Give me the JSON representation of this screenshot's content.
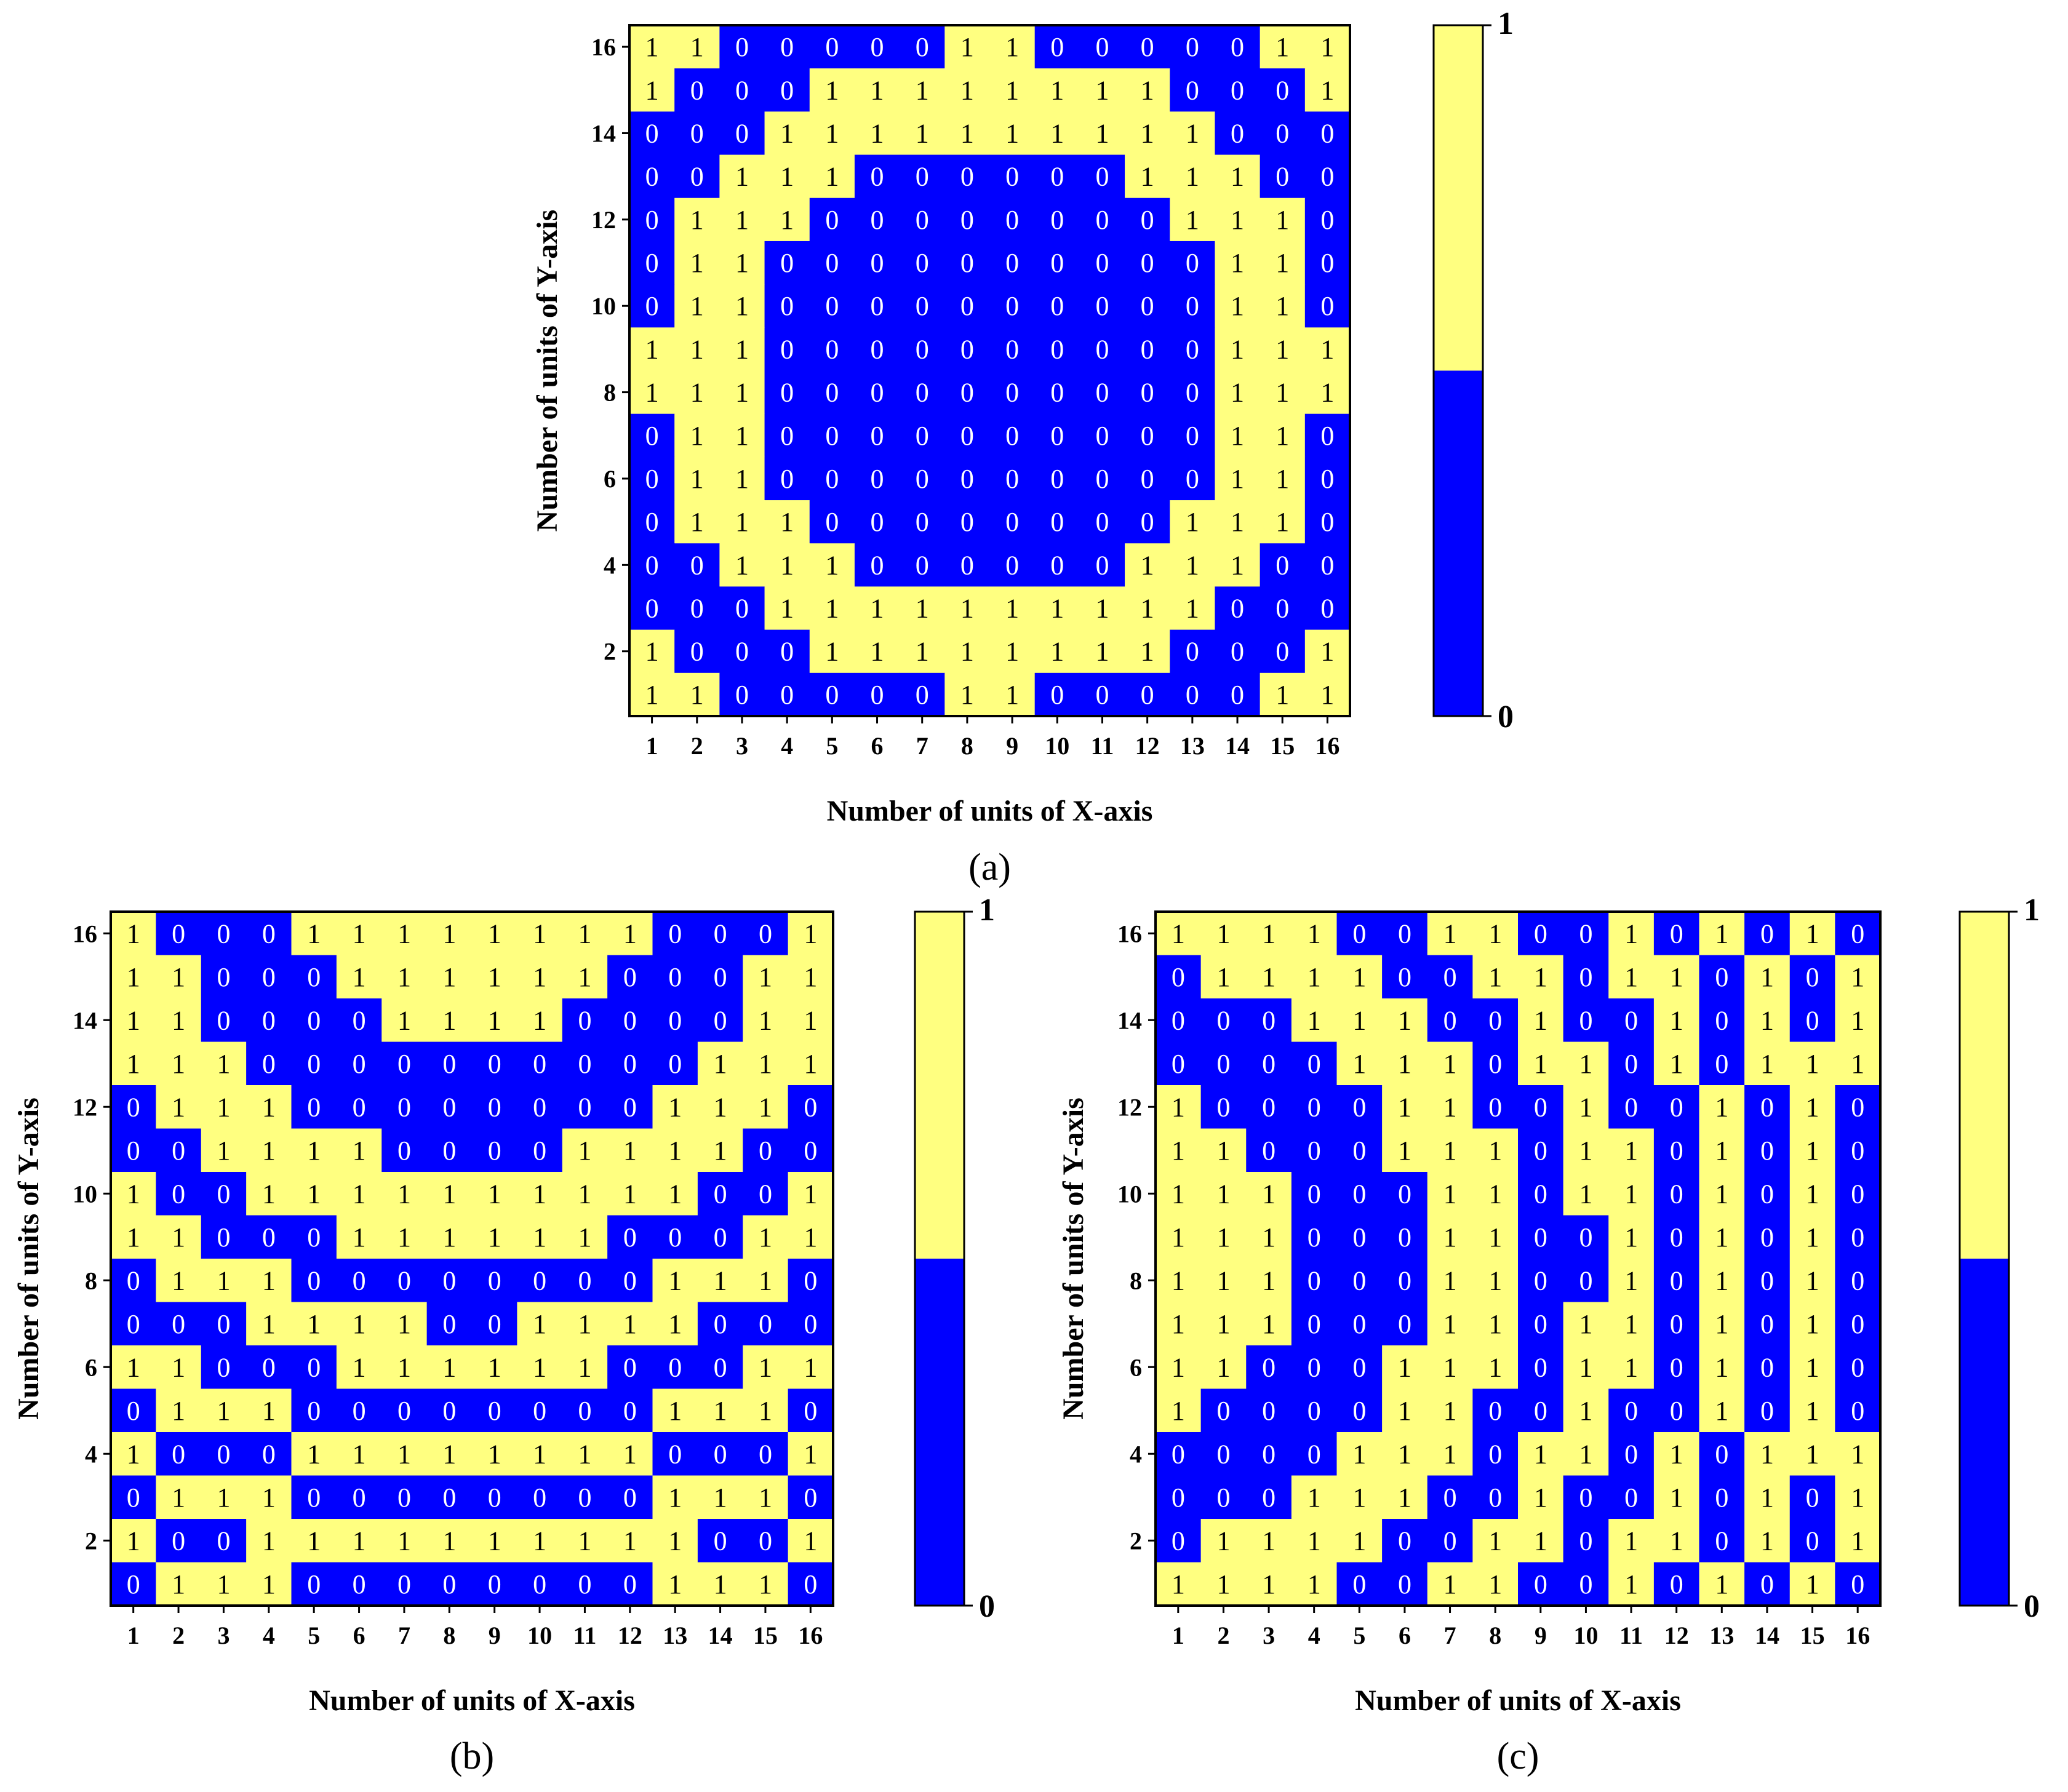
{
  "colors": {
    "zero": "#0000ff",
    "one": "#ffff80",
    "zero_text": "#ffffff",
    "one_text": "#000000",
    "frame": "#000000"
  },
  "chart_data": [
    {
      "type": "heatmap",
      "panel_label": "(a)",
      "xlabel": "Number of units of X-axis",
      "ylabel": "Number of units of Y-axis",
      "x_ticks": [
        "1",
        "2",
        "3",
        "4",
        "5",
        "6",
        "7",
        "8",
        "9",
        "10",
        "11",
        "12",
        "13",
        "14",
        "15",
        "16"
      ],
      "y_ticks": [
        "2",
        "4",
        "6",
        "8",
        "10",
        "12",
        "14",
        "16"
      ],
      "colorbar": {
        "min_label": "0",
        "max_label": "1"
      },
      "rows_top_to_bottom": [
        [
          1,
          1,
          0,
          0,
          0,
          0,
          0,
          1,
          1,
          0,
          0,
          0,
          0,
          0,
          1,
          1
        ],
        [
          1,
          0,
          0,
          0,
          1,
          1,
          1,
          1,
          1,
          1,
          1,
          1,
          0,
          0,
          0,
          1
        ],
        [
          0,
          0,
          0,
          1,
          1,
          1,
          1,
          1,
          1,
          1,
          1,
          1,
          1,
          0,
          0,
          0
        ],
        [
          0,
          0,
          1,
          1,
          1,
          0,
          0,
          0,
          0,
          0,
          0,
          1,
          1,
          1,
          0,
          0
        ],
        [
          0,
          1,
          1,
          1,
          0,
          0,
          0,
          0,
          0,
          0,
          0,
          0,
          1,
          1,
          1,
          0
        ],
        [
          0,
          1,
          1,
          0,
          0,
          0,
          0,
          0,
          0,
          0,
          0,
          0,
          0,
          1,
          1,
          0
        ],
        [
          0,
          1,
          1,
          0,
          0,
          0,
          0,
          0,
          0,
          0,
          0,
          0,
          0,
          1,
          1,
          0
        ],
        [
          1,
          1,
          1,
          0,
          0,
          0,
          0,
          0,
          0,
          0,
          0,
          0,
          0,
          1,
          1,
          1
        ],
        [
          1,
          1,
          1,
          0,
          0,
          0,
          0,
          0,
          0,
          0,
          0,
          0,
          0,
          1,
          1,
          1
        ],
        [
          0,
          1,
          1,
          0,
          0,
          0,
          0,
          0,
          0,
          0,
          0,
          0,
          0,
          1,
          1,
          0
        ],
        [
          0,
          1,
          1,
          0,
          0,
          0,
          0,
          0,
          0,
          0,
          0,
          0,
          0,
          1,
          1,
          0
        ],
        [
          0,
          1,
          1,
          1,
          0,
          0,
          0,
          0,
          0,
          0,
          0,
          0,
          1,
          1,
          1,
          0
        ],
        [
          0,
          0,
          1,
          1,
          1,
          0,
          0,
          0,
          0,
          0,
          0,
          1,
          1,
          1,
          0,
          0
        ],
        [
          0,
          0,
          0,
          1,
          1,
          1,
          1,
          1,
          1,
          1,
          1,
          1,
          1,
          0,
          0,
          0
        ],
        [
          1,
          0,
          0,
          0,
          1,
          1,
          1,
          1,
          1,
          1,
          1,
          1,
          0,
          0,
          0,
          1
        ],
        [
          1,
          1,
          0,
          0,
          0,
          0,
          0,
          1,
          1,
          0,
          0,
          0,
          0,
          0,
          1,
          1
        ]
      ]
    },
    {
      "type": "heatmap",
      "panel_label": "(b)",
      "xlabel": "Number of units of X-axis",
      "ylabel": "Number of units of Y-axis",
      "x_ticks": [
        "1",
        "2",
        "3",
        "4",
        "5",
        "6",
        "7",
        "8",
        "9",
        "10",
        "11",
        "12",
        "13",
        "14",
        "15",
        "16"
      ],
      "y_ticks": [
        "2",
        "4",
        "6",
        "8",
        "10",
        "12",
        "14",
        "16"
      ],
      "colorbar": {
        "min_label": "0",
        "max_label": "1"
      },
      "rows_top_to_bottom": [
        [
          1,
          0,
          0,
          0,
          1,
          1,
          1,
          1,
          1,
          1,
          1,
          1,
          0,
          0,
          0,
          1
        ],
        [
          1,
          1,
          0,
          0,
          0,
          1,
          1,
          1,
          1,
          1,
          1,
          0,
          0,
          0,
          1,
          1
        ],
        [
          1,
          1,
          0,
          0,
          0,
          0,
          1,
          1,
          1,
          1,
          0,
          0,
          0,
          0,
          1,
          1
        ],
        [
          1,
          1,
          1,
          0,
          0,
          0,
          0,
          0,
          0,
          0,
          0,
          0,
          0,
          1,
          1,
          1
        ],
        [
          0,
          1,
          1,
          1,
          0,
          0,
          0,
          0,
          0,
          0,
          0,
          0,
          1,
          1,
          1,
          0
        ],
        [
          0,
          0,
          1,
          1,
          1,
          1,
          0,
          0,
          0,
          0,
          1,
          1,
          1,
          1,
          0,
          0
        ],
        [
          1,
          0,
          0,
          1,
          1,
          1,
          1,
          1,
          1,
          1,
          1,
          1,
          1,
          0,
          0,
          1
        ],
        [
          1,
          1,
          0,
          0,
          0,
          1,
          1,
          1,
          1,
          1,
          1,
          0,
          0,
          0,
          1,
          1
        ],
        [
          0,
          1,
          1,
          1,
          0,
          0,
          0,
          0,
          0,
          0,
          0,
          0,
          1,
          1,
          1,
          0
        ],
        [
          0,
          0,
          0,
          1,
          1,
          1,
          1,
          0,
          0,
          1,
          1,
          1,
          1,
          0,
          0,
          0
        ],
        [
          1,
          1,
          0,
          0,
          0,
          1,
          1,
          1,
          1,
          1,
          1,
          0,
          0,
          0,
          1,
          1
        ],
        [
          0,
          1,
          1,
          1,
          0,
          0,
          0,
          0,
          0,
          0,
          0,
          0,
          1,
          1,
          1,
          0
        ],
        [
          1,
          0,
          0,
          0,
          1,
          1,
          1,
          1,
          1,
          1,
          1,
          1,
          0,
          0,
          0,
          1
        ],
        [
          0,
          1,
          1,
          1,
          0,
          0,
          0,
          0,
          0,
          0,
          0,
          0,
          1,
          1,
          1,
          0
        ],
        [
          1,
          0,
          0,
          1,
          1,
          1,
          1,
          1,
          1,
          1,
          1,
          1,
          1,
          0,
          0,
          1
        ],
        [
          0,
          1,
          1,
          1,
          0,
          0,
          0,
          0,
          0,
          0,
          0,
          0,
          1,
          1,
          1,
          0
        ]
      ]
    },
    {
      "type": "heatmap",
      "panel_label": "(c)",
      "xlabel": "Number of units of X-axis",
      "ylabel": "Number of units of Y-axis",
      "x_ticks": [
        "1",
        "2",
        "3",
        "4",
        "5",
        "6",
        "7",
        "8",
        "9",
        "10",
        "11",
        "12",
        "13",
        "14",
        "15",
        "16"
      ],
      "y_ticks": [
        "2",
        "4",
        "6",
        "8",
        "10",
        "12",
        "14",
        "16"
      ],
      "colorbar": {
        "min_label": "0",
        "max_label": "1"
      },
      "rows_top_to_bottom": [
        [
          1,
          1,
          1,
          1,
          0,
          0,
          1,
          1,
          0,
          0,
          1,
          0,
          1,
          0,
          1,
          0
        ],
        [
          0,
          1,
          1,
          1,
          1,
          0,
          0,
          1,
          1,
          0,
          1,
          1,
          0,
          1,
          0,
          1
        ],
        [
          0,
          0,
          0,
          1,
          1,
          1,
          0,
          0,
          1,
          0,
          0,
          1,
          0,
          1,
          0,
          1
        ],
        [
          0,
          0,
          0,
          0,
          1,
          1,
          1,
          0,
          1,
          1,
          0,
          1,
          0,
          1,
          1,
          1
        ],
        [
          1,
          0,
          0,
          0,
          0,
          1,
          1,
          0,
          0,
          1,
          0,
          0,
          1,
          0,
          1,
          0
        ],
        [
          1,
          1,
          0,
          0,
          0,
          1,
          1,
          1,
          0,
          1,
          1,
          0,
          1,
          0,
          1,
          0
        ],
        [
          1,
          1,
          1,
          0,
          0,
          0,
          1,
          1,
          0,
          1,
          1,
          0,
          1,
          0,
          1,
          0
        ],
        [
          1,
          1,
          1,
          0,
          0,
          0,
          1,
          1,
          0,
          0,
          1,
          0,
          1,
          0,
          1,
          0
        ],
        [
          1,
          1,
          1,
          0,
          0,
          0,
          1,
          1,
          0,
          0,
          1,
          0,
          1,
          0,
          1,
          0
        ],
        [
          1,
          1,
          1,
          0,
          0,
          0,
          1,
          1,
          0,
          1,
          1,
          0,
          1,
          0,
          1,
          0
        ],
        [
          1,
          1,
          0,
          0,
          0,
          1,
          1,
          1,
          0,
          1,
          1,
          0,
          1,
          0,
          1,
          0
        ],
        [
          1,
          0,
          0,
          0,
          0,
          1,
          1,
          0,
          0,
          1,
          0,
          0,
          1,
          0,
          1,
          0
        ],
        [
          0,
          0,
          0,
          0,
          1,
          1,
          1,
          0,
          1,
          1,
          0,
          1,
          0,
          1,
          1,
          1
        ],
        [
          0,
          0,
          0,
          1,
          1,
          1,
          0,
          0,
          1,
          0,
          0,
          1,
          0,
          1,
          0,
          1
        ],
        [
          0,
          1,
          1,
          1,
          1,
          0,
          0,
          1,
          1,
          0,
          1,
          1,
          0,
          1,
          0,
          1
        ],
        [
          1,
          1,
          1,
          1,
          0,
          0,
          1,
          1,
          0,
          0,
          1,
          0,
          1,
          0,
          1,
          0
        ]
      ]
    }
  ]
}
